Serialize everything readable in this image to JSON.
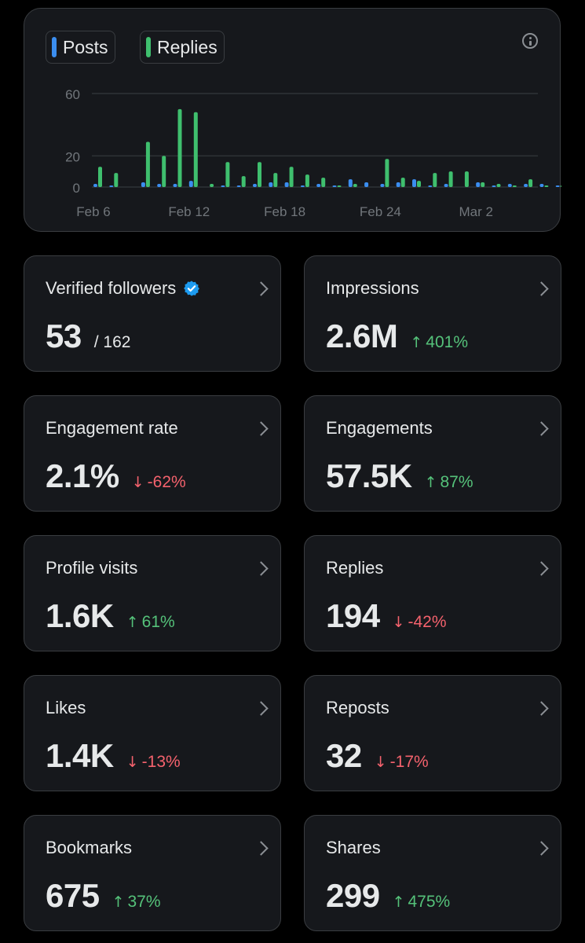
{
  "colors": {
    "posts": "#3b8ef0",
    "replies": "#3fbf6e",
    "up": "#55c27a",
    "down": "#f4626d"
  },
  "legend": {
    "posts_label": "Posts",
    "replies_label": "Replies"
  },
  "chart_data": {
    "type": "bar",
    "ylim": [
      0,
      60
    ],
    "y_ticks": [
      0,
      20,
      60
    ],
    "x_tick_labels": [
      "Feb 6",
      "Feb 12",
      "Feb 18",
      "Feb 24",
      "Mar 2"
    ],
    "start_label": "Feb 6",
    "categories": [
      "Feb 6",
      "Feb 7",
      "Feb 8",
      "Feb 9",
      "Feb 10",
      "Feb 11",
      "Feb 12",
      "Feb 13",
      "Feb 14",
      "Feb 15",
      "Feb 16",
      "Feb 17",
      "Feb 18",
      "Feb 19",
      "Feb 20",
      "Feb 21",
      "Feb 22",
      "Feb 23",
      "Feb 24",
      "Feb 25",
      "Feb 26",
      "Feb 27",
      "Feb 28",
      "Mar 1",
      "Mar 2",
      "Mar 3",
      "Mar 4",
      "Mar 5",
      "Mar 6",
      "Mar 7",
      "Mar 8"
    ],
    "series": [
      {
        "name": "Posts",
        "values": [
          2,
          1,
          0,
          3,
          2,
          2,
          4,
          0,
          1,
          1,
          2,
          3,
          3,
          1,
          2,
          1,
          5,
          3,
          2,
          3,
          5,
          1,
          2,
          0,
          3,
          1,
          2,
          2,
          2,
          1,
          0
        ]
      },
      {
        "name": "Replies",
        "values": [
          13,
          9,
          0,
          29,
          20,
          50,
          48,
          2,
          16,
          7,
          16,
          9,
          13,
          8,
          6,
          1,
          2,
          0,
          18,
          6,
          4,
          9,
          10,
          10,
          3,
          2,
          1,
          5,
          1,
          1,
          0
        ]
      }
    ]
  },
  "stats": [
    {
      "label": "Verified followers",
      "value": "53",
      "total": "/ 162"
    },
    {
      "label": "Impressions",
      "value": "2.6M",
      "change": "401%",
      "dir": "up"
    },
    {
      "label": "Engagement rate",
      "value": "2.1%",
      "change": "-62%",
      "dir": "down"
    },
    {
      "label": "Engagements",
      "value": "57.5K",
      "change": "87%",
      "dir": "up"
    },
    {
      "label": "Profile visits",
      "value": "1.6K",
      "change": "61%",
      "dir": "up"
    },
    {
      "label": "Replies",
      "value": "194",
      "change": "-42%",
      "dir": "down"
    },
    {
      "label": "Likes",
      "value": "1.4K",
      "change": "-13%",
      "dir": "down"
    },
    {
      "label": "Reposts",
      "value": "32",
      "change": "-17%",
      "dir": "down"
    },
    {
      "label": "Bookmarks",
      "value": "675",
      "change": "37%",
      "dir": "up"
    },
    {
      "label": "Shares",
      "value": "299",
      "change": "475%",
      "dir": "up"
    }
  ],
  "arrows": {
    "up": "↑",
    "down": "↓"
  }
}
